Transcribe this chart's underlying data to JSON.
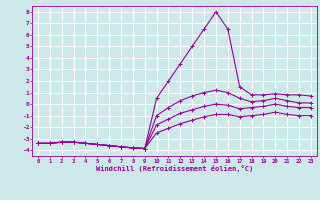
{
  "xlabel": "Windchill (Refroidissement éolien,°C)",
  "bg_color": "#cce8e8",
  "grid_color": "#ffffff",
  "line_color": "#990099",
  "xlim": [
    -0.5,
    23.5
  ],
  "ylim": [
    -4.5,
    8.5
  ],
  "xticks": [
    0,
    1,
    2,
    3,
    4,
    5,
    6,
    7,
    8,
    9,
    10,
    11,
    12,
    13,
    14,
    15,
    16,
    17,
    18,
    19,
    20,
    21,
    22,
    23
  ],
  "yticks": [
    -4,
    -3,
    -2,
    -1,
    0,
    1,
    2,
    3,
    4,
    5,
    6,
    7,
    8
  ],
  "curves": [
    {
      "x": [
        0,
        1,
        2,
        3,
        4,
        5,
        6,
        7,
        8,
        9,
        10,
        11,
        12,
        13,
        14,
        15,
        16,
        17,
        18,
        19,
        20,
        21,
        22,
        23
      ],
      "y": [
        -3.4,
        -3.4,
        -3.3,
        -3.3,
        -3.4,
        -3.5,
        -3.6,
        -3.7,
        -3.8,
        -3.85,
        0.5,
        2.0,
        3.5,
        5.0,
        6.5,
        8.0,
        6.5,
        1.5,
        0.8,
        0.8,
        0.9,
        0.8,
        0.8,
        0.7
      ]
    },
    {
      "x": [
        0,
        1,
        2,
        3,
        4,
        5,
        6,
        7,
        8,
        9,
        10,
        11,
        12,
        13,
        14,
        15,
        16,
        17,
        18,
        19,
        20,
        21,
        22,
        23
      ],
      "y": [
        -3.4,
        -3.4,
        -3.3,
        -3.3,
        -3.4,
        -3.5,
        -3.6,
        -3.7,
        -3.8,
        -3.85,
        -1.0,
        -0.3,
        0.3,
        0.7,
        1.0,
        1.2,
        1.0,
        0.5,
        0.2,
        0.3,
        0.5,
        0.3,
        0.1,
        0.1
      ]
    },
    {
      "x": [
        0,
        1,
        2,
        3,
        4,
        5,
        6,
        7,
        8,
        9,
        10,
        11,
        12,
        13,
        14,
        15,
        16,
        17,
        18,
        19,
        20,
        21,
        22,
        23
      ],
      "y": [
        -3.4,
        -3.4,
        -3.3,
        -3.3,
        -3.4,
        -3.5,
        -3.6,
        -3.7,
        -3.8,
        -3.85,
        -1.8,
        -1.3,
        -0.8,
        -0.5,
        -0.2,
        0.0,
        -0.1,
        -0.4,
        -0.3,
        -0.2,
        0.0,
        -0.2,
        -0.3,
        -0.3
      ]
    },
    {
      "x": [
        0,
        1,
        2,
        3,
        4,
        5,
        6,
        7,
        8,
        9,
        10,
        11,
        12,
        13,
        14,
        15,
        16,
        17,
        18,
        19,
        20,
        21,
        22,
        23
      ],
      "y": [
        -3.4,
        -3.4,
        -3.3,
        -3.3,
        -3.4,
        -3.5,
        -3.6,
        -3.7,
        -3.8,
        -3.85,
        -2.5,
        -2.1,
        -1.7,
        -1.4,
        -1.1,
        -0.9,
        -0.9,
        -1.1,
        -1.0,
        -0.9,
        -0.7,
        -0.9,
        -1.0,
        -1.0
      ]
    }
  ]
}
